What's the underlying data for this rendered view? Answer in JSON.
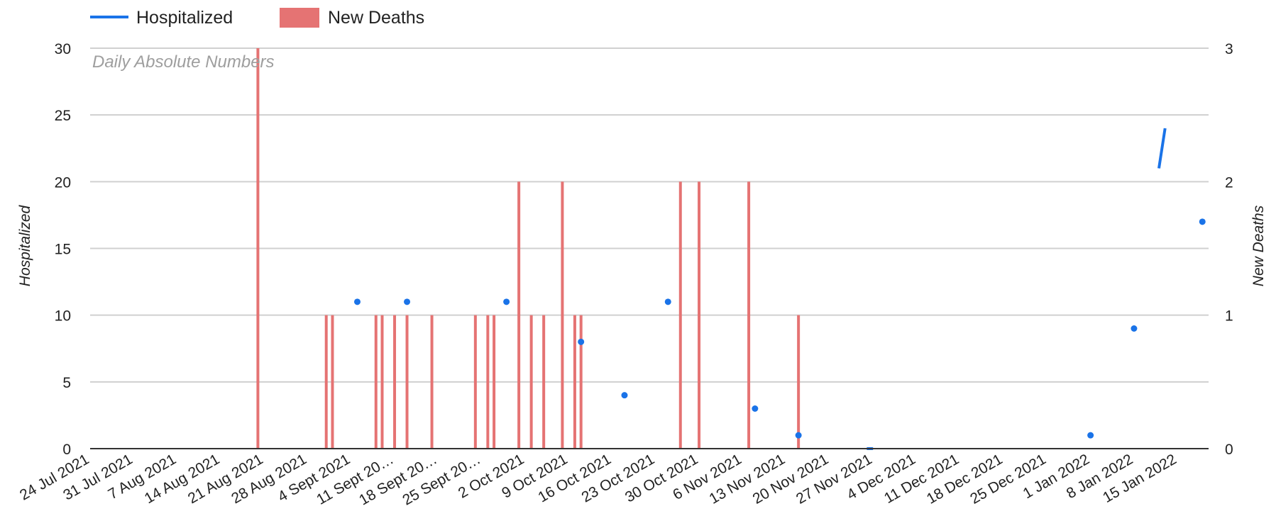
{
  "chart_data": {
    "type": "bar",
    "title": "",
    "subtitle": "Daily Absolute Numbers",
    "legend_position": "top-left",
    "grid": true,
    "x_axis": {
      "type": "date",
      "range": [
        "2021-07-24",
        "2022-01-20"
      ],
      "tick_labels": [
        "24 Jul 2021",
        "31 Jul 2021",
        "7 Aug 2021",
        "14 Aug 2021",
        "21 Aug 2021",
        "28 Aug 2021",
        "4 Sept 2021",
        "11 Sept 20…",
        "18 Sept 20…",
        "25 Sept 20…",
        "2 Oct 2021",
        "9 Oct 2021",
        "16 Oct 2021",
        "23 Oct 2021",
        "30 Oct 2021",
        "6 Nov 2021",
        "13 Nov 2021",
        "20 Nov 2021",
        "27 Nov 2021",
        "4 Dec 2021",
        "11 Dec 2021",
        "18 Dec 2021",
        "25 Dec 2021",
        "1 Jan 2022",
        "8 Jan 2022",
        "15 Jan 2022"
      ]
    },
    "y_left": {
      "label": "Hospitalized",
      "range": [
        0,
        30
      ],
      "ticks": [
        "0",
        "5",
        "10",
        "15",
        "20",
        "25",
        "30"
      ]
    },
    "y_right": {
      "label": "New Deaths",
      "range": [
        0,
        3
      ],
      "ticks": [
        "0",
        "1",
        "2",
        "3"
      ]
    },
    "series": [
      {
        "name": "Hospitalized",
        "type": "line",
        "axis": "left",
        "color": "#1a73e8",
        "points": [
          [
            "2021-09-05",
            11
          ],
          [
            "2021-09-13",
            11
          ],
          [
            "2021-09-29",
            11
          ],
          [
            "2021-10-11",
            8
          ],
          [
            "2021-10-18",
            4
          ],
          [
            "2021-10-25",
            11
          ],
          [
            "2021-11-08",
            3
          ],
          [
            "2021-11-15",
            1
          ],
          [
            "2021-11-26",
            0
          ],
          [
            "2021-11-27",
            0
          ],
          [
            "2022-01-01",
            1
          ],
          [
            "2022-01-08",
            9
          ],
          [
            "2022-01-12",
            21
          ],
          [
            "2022-01-13",
            24
          ],
          [
            "2022-01-19",
            17
          ]
        ]
      },
      {
        "name": "New Deaths",
        "type": "bar",
        "axis": "right",
        "color": "#e57373",
        "points": [
          [
            "2021-08-20",
            3
          ],
          [
            "2021-08-31",
            1
          ],
          [
            "2021-09-01",
            1
          ],
          [
            "2021-09-08",
            1
          ],
          [
            "2021-09-09",
            1
          ],
          [
            "2021-09-11",
            1
          ],
          [
            "2021-09-13",
            1
          ],
          [
            "2021-09-17",
            1
          ],
          [
            "2021-09-24",
            1
          ],
          [
            "2021-09-26",
            1
          ],
          [
            "2021-09-27",
            1
          ],
          [
            "2021-10-01",
            2
          ],
          [
            "2021-10-03",
            1
          ],
          [
            "2021-10-05",
            1
          ],
          [
            "2021-10-08",
            2
          ],
          [
            "2021-10-10",
            1
          ],
          [
            "2021-10-11",
            1
          ],
          [
            "2021-10-27",
            2
          ],
          [
            "2021-10-30",
            2
          ],
          [
            "2021-11-07",
            2
          ],
          [
            "2021-11-15",
            1
          ]
        ]
      }
    ]
  }
}
